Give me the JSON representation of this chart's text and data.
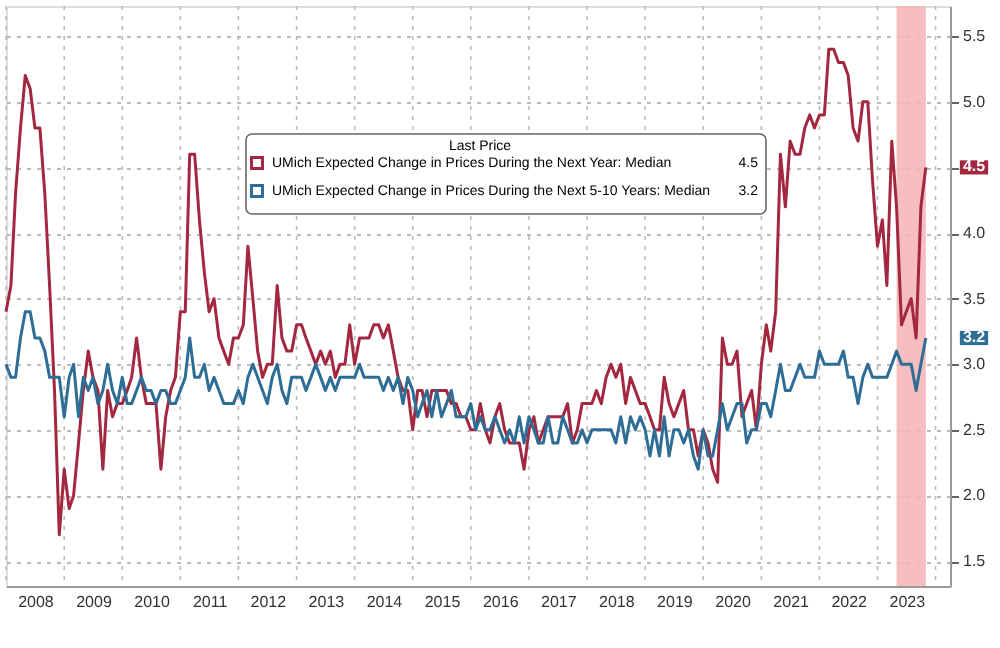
{
  "chart_data": {
    "type": "line",
    "legend_title": "Last Price",
    "legend": "top",
    "grid": true,
    "line_style": "solid",
    "marker": "none",
    "xlim": [
      "2008-01",
      "2024-04"
    ],
    "ylim": [
      1.31,
      5.73
    ],
    "yticks": [
      {
        "value": 1.5,
        "label": "1.5"
      },
      {
        "value": 2.0,
        "label": "2.0"
      },
      {
        "value": 2.5,
        "label": "2.5"
      },
      {
        "value": 3.0,
        "label": "3.0"
      },
      {
        "value": 3.5,
        "label": "3.5"
      },
      {
        "value": 4.0,
        "label": "4.0"
      },
      {
        "value": 4.5,
        "label": null
      },
      {
        "value": 5.0,
        "label": "5.0"
      },
      {
        "value": 5.5,
        "label": "5.5"
      }
    ],
    "xticks": [
      {
        "value": "2008-01",
        "label": null
      },
      {
        "value": "2008-07",
        "label": "2008"
      },
      {
        "value": "2009-01",
        "label": null
      },
      {
        "value": "2009-07",
        "label": "2009"
      },
      {
        "value": "2010-01",
        "label": null
      },
      {
        "value": "2010-07",
        "label": "2010"
      },
      {
        "value": "2011-01",
        "label": null
      },
      {
        "value": "2011-07",
        "label": "2011"
      },
      {
        "value": "2012-01",
        "label": null
      },
      {
        "value": "2012-07",
        "label": "2012"
      },
      {
        "value": "2013-01",
        "label": null
      },
      {
        "value": "2013-07",
        "label": "2013"
      },
      {
        "value": "2014-01",
        "label": null
      },
      {
        "value": "2014-07",
        "label": "2014"
      },
      {
        "value": "2015-01",
        "label": null
      },
      {
        "value": "2015-07",
        "label": "2015"
      },
      {
        "value": "2016-01",
        "label": null
      },
      {
        "value": "2016-07",
        "label": "2016"
      },
      {
        "value": "2017-01",
        "label": null
      },
      {
        "value": "2017-07",
        "label": "2017"
      },
      {
        "value": "2018-01",
        "label": null
      },
      {
        "value": "2018-07",
        "label": "2018"
      },
      {
        "value": "2019-01",
        "label": null
      },
      {
        "value": "2019-07",
        "label": "2019"
      },
      {
        "value": "2020-01",
        "label": null
      },
      {
        "value": "2020-07",
        "label": "2020"
      },
      {
        "value": "2021-01",
        "label": null
      },
      {
        "value": "2021-07",
        "label": "2021"
      },
      {
        "value": "2022-01",
        "label": null
      },
      {
        "value": "2022-07",
        "label": "2022"
      },
      {
        "value": "2023-01",
        "label": null
      },
      {
        "value": "2023-07",
        "label": "2023"
      },
      {
        "value": "2024-01",
        "label": null
      }
    ],
    "x": [
      "2008-01",
      "2008-02",
      "2008-03",
      "2008-04",
      "2008-05",
      "2008-06",
      "2008-07",
      "2008-08",
      "2008-09",
      "2008-10",
      "2008-11",
      "2008-12",
      "2009-01",
      "2009-02",
      "2009-03",
      "2009-04",
      "2009-05",
      "2009-06",
      "2009-07",
      "2009-08",
      "2009-09",
      "2009-10",
      "2009-11",
      "2009-12",
      "2010-01",
      "2010-02",
      "2010-03",
      "2010-04",
      "2010-05",
      "2010-06",
      "2010-07",
      "2010-08",
      "2010-09",
      "2010-10",
      "2010-11",
      "2010-12",
      "2011-01",
      "2011-02",
      "2011-03",
      "2011-04",
      "2011-05",
      "2011-06",
      "2011-07",
      "2011-08",
      "2011-09",
      "2011-10",
      "2011-11",
      "2011-12",
      "2012-01",
      "2012-02",
      "2012-03",
      "2012-04",
      "2012-05",
      "2012-06",
      "2012-07",
      "2012-08",
      "2012-09",
      "2012-10",
      "2012-11",
      "2012-12",
      "2013-01",
      "2013-02",
      "2013-03",
      "2013-04",
      "2013-05",
      "2013-06",
      "2013-07",
      "2013-08",
      "2013-09",
      "2013-10",
      "2013-11",
      "2013-12",
      "2014-01",
      "2014-02",
      "2014-03",
      "2014-04",
      "2014-05",
      "2014-06",
      "2014-07",
      "2014-08",
      "2014-09",
      "2014-10",
      "2014-11",
      "2014-12",
      "2015-01",
      "2015-02",
      "2015-03",
      "2015-04",
      "2015-05",
      "2015-06",
      "2015-07",
      "2015-08",
      "2015-09",
      "2015-10",
      "2015-11",
      "2015-12",
      "2016-01",
      "2016-02",
      "2016-03",
      "2016-04",
      "2016-05",
      "2016-06",
      "2016-07",
      "2016-08",
      "2016-09",
      "2016-10",
      "2016-11",
      "2016-12",
      "2017-01",
      "2017-02",
      "2017-03",
      "2017-04",
      "2017-05",
      "2017-06",
      "2017-07",
      "2017-08",
      "2017-09",
      "2017-10",
      "2017-11",
      "2017-12",
      "2018-01",
      "2018-02",
      "2018-03",
      "2018-04",
      "2018-05",
      "2018-06",
      "2018-07",
      "2018-08",
      "2018-09",
      "2018-10",
      "2018-11",
      "2018-12",
      "2019-01",
      "2019-02",
      "2019-03",
      "2019-04",
      "2019-05",
      "2019-06",
      "2019-07",
      "2019-08",
      "2019-09",
      "2019-10",
      "2019-11",
      "2019-12",
      "2020-01",
      "2020-02",
      "2020-03",
      "2020-04",
      "2020-05",
      "2020-06",
      "2020-07",
      "2020-08",
      "2020-09",
      "2020-10",
      "2020-11",
      "2020-12",
      "2021-01",
      "2021-02",
      "2021-03",
      "2021-04",
      "2021-05",
      "2021-06",
      "2021-07",
      "2021-08",
      "2021-09",
      "2021-10",
      "2021-11",
      "2021-12",
      "2022-01",
      "2022-02",
      "2022-03",
      "2022-04",
      "2022-05",
      "2022-06",
      "2022-07",
      "2022-08",
      "2022-09",
      "2022-10",
      "2022-11",
      "2022-12",
      "2023-01",
      "2023-02",
      "2023-03",
      "2023-04",
      "2023-05",
      "2023-06",
      "2023-07",
      "2023-08",
      "2023-09",
      "2023-10",
      "2023-11"
    ],
    "series": [
      {
        "name": "UMich Expected Change in Prices During the Next Year: Median",
        "color": "#a3283f",
        "values": [
          3.4,
          3.6,
          4.3,
          4.8,
          5.2,
          5.1,
          4.8,
          4.8,
          4.3,
          3.6,
          2.8,
          1.7,
          2.2,
          1.9,
          2.0,
          2.4,
          2.8,
          3.1,
          2.9,
          2.8,
          2.2,
          2.8,
          2.6,
          2.7,
          2.7,
          2.8,
          2.9,
          3.2,
          2.9,
          2.7,
          2.7,
          2.7,
          2.2,
          2.6,
          2.8,
          2.9,
          3.4,
          3.4,
          4.6,
          4.6,
          4.1,
          3.7,
          3.4,
          3.5,
          3.2,
          3.1,
          3.0,
          3.2,
          3.2,
          3.3,
          3.9,
          3.5,
          3.1,
          2.9,
          3.0,
          3.0,
          3.6,
          3.2,
          3.1,
          3.1,
          3.3,
          3.3,
          3.2,
          3.1,
          3.0,
          3.1,
          3.0,
          3.1,
          2.9,
          3.0,
          3.0,
          3.3,
          3.0,
          3.2,
          3.2,
          3.2,
          3.3,
          3.3,
          3.2,
          3.3,
          3.1,
          2.9,
          2.8,
          2.8,
          2.5,
          2.8,
          2.8,
          2.6,
          2.8,
          2.8,
          2.8,
          2.8,
          2.7,
          2.7,
          2.6,
          2.6,
          2.5,
          2.5,
          2.7,
          2.5,
          2.4,
          2.6,
          2.7,
          2.5,
          2.4,
          2.4,
          2.4,
          2.2,
          2.5,
          2.6,
          2.4,
          2.5,
          2.6,
          2.6,
          2.6,
          2.6,
          2.7,
          2.4,
          2.5,
          2.7,
          2.7,
          2.7,
          2.8,
          2.7,
          2.9,
          3.0,
          2.9,
          3.0,
          2.7,
          2.9,
          2.8,
          2.7,
          2.7,
          2.6,
          2.5,
          2.5,
          2.9,
          2.7,
          2.6,
          2.7,
          2.8,
          2.5,
          2.5,
          2.3,
          2.5,
          2.4,
          2.2,
          2.1,
          3.2,
          3.0,
          3.0,
          3.1,
          2.6,
          2.7,
          2.8,
          2.5,
          3.0,
          3.3,
          3.1,
          3.4,
          4.6,
          4.2,
          4.7,
          4.6,
          4.6,
          4.8,
          4.9,
          4.8,
          4.9,
          4.9,
          5.4,
          5.4,
          5.3,
          5.3,
          5.2,
          4.8,
          4.7,
          5.0,
          5.0,
          4.4,
          3.9,
          4.1,
          3.6,
          4.7,
          4.2,
          3.3,
          3.4,
          3.5,
          3.2,
          4.2,
          4.5
        ]
      },
      {
        "name": "UMich Expected Change in Prices During the Next 5-10 Years: Median",
        "color": "#2e6d96",
        "values": [
          3.0,
          2.9,
          2.9,
          3.2,
          3.4,
          3.4,
          3.2,
          3.2,
          3.1,
          2.9,
          2.9,
          2.9,
          2.6,
          2.9,
          3.0,
          2.6,
          2.9,
          2.8,
          2.9,
          2.7,
          2.8,
          3.0,
          2.8,
          2.7,
          2.9,
          2.7,
          2.7,
          2.8,
          2.9,
          2.8,
          2.8,
          2.7,
          2.8,
          2.8,
          2.7,
          2.7,
          2.8,
          2.9,
          3.2,
          2.9,
          2.9,
          3.0,
          2.8,
          2.9,
          2.8,
          2.7,
          2.7,
          2.7,
          2.8,
          2.7,
          2.9,
          3.0,
          2.9,
          2.8,
          2.7,
          2.9,
          3.0,
          2.8,
          2.7,
          2.9,
          2.9,
          2.9,
          2.8,
          2.9,
          3.0,
          2.9,
          2.8,
          2.9,
          2.8,
          2.9,
          2.9,
          2.9,
          2.9,
          3.0,
          2.9,
          2.9,
          2.9,
          2.9,
          2.8,
          2.9,
          2.8,
          2.9,
          2.7,
          2.9,
          2.8,
          2.6,
          2.7,
          2.8,
          2.6,
          2.8,
          2.6,
          2.7,
          2.8,
          2.6,
          2.6,
          2.6,
          2.7,
          2.5,
          2.6,
          2.5,
          2.5,
          2.6,
          2.5,
          2.4,
          2.5,
          2.4,
          2.6,
          2.4,
          2.6,
          2.5,
          2.4,
          2.4,
          2.6,
          2.4,
          2.4,
          2.6,
          2.5,
          2.4,
          2.4,
          2.5,
          2.4,
          2.5,
          2.5,
          2.5,
          2.5,
          2.5,
          2.4,
          2.6,
          2.4,
          2.6,
          2.5,
          2.6,
          2.5,
          2.3,
          2.5,
          2.3,
          2.6,
          2.3,
          2.5,
          2.5,
          2.4,
          2.5,
          2.3,
          2.2,
          2.5,
          2.3,
          2.3,
          2.5,
          2.7,
          2.5,
          2.6,
          2.7,
          2.7,
          2.4,
          2.5,
          2.5,
          2.7,
          2.7,
          2.6,
          2.8,
          3.0,
          2.8,
          2.8,
          2.9,
          3.0,
          2.9,
          2.9,
          2.9,
          3.1,
          3.0,
          3.0,
          3.0,
          3.0,
          3.1,
          2.9,
          2.9,
          2.7,
          2.9,
          3.0,
          2.9,
          2.9,
          2.9,
          2.9,
          3.0,
          3.1,
          3.0,
          3.0,
          3.0,
          2.8,
          3.0,
          3.2
        ]
      }
    ],
    "bands": [
      {
        "axis": "x",
        "from": "2023-05",
        "to": "2023-11",
        "color": "#f4b3b5"
      }
    ],
    "annotations": [
      "4.5",
      "3.2",
      "4.5",
      "3.2"
    ]
  }
}
